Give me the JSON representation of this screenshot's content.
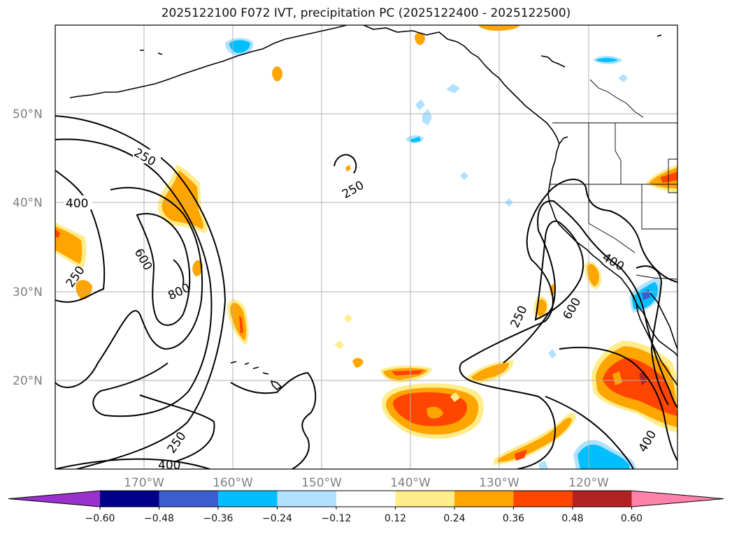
{
  "title": "2025122100 F072 IVT, precipitation PC (2025122400 - 2025122500)",
  "map": {
    "lon_range": [
      -180,
      -110
    ],
    "lat_range": [
      10,
      60
    ],
    "lat_labels": [
      "50°N",
      "40°N",
      "30°N",
      "20°N"
    ],
    "lon_labels": [
      "170°W",
      "160°W",
      "150°W",
      "140°W",
      "130°W",
      "120°W"
    ],
    "ivt_contour_labels": [
      "250",
      "400",
      "250",
      "600",
      "800",
      "250",
      "400",
      "250",
      "600",
      "400",
      "250",
      "400"
    ]
  },
  "colorbar": {
    "ticks": [
      "−0.60",
      "−0.48",
      "−0.36",
      "−0.24",
      "−0.12",
      "0.12",
      "0.24",
      "0.36",
      "0.48",
      "0.60"
    ],
    "colors": [
      "#9932cc",
      "#00008b",
      "#3a5fcd",
      "#00bfff",
      "#b0e2ff",
      "#ffffff",
      "#ffec8b",
      "#ffa500",
      "#ff4500",
      "#b22222",
      "#ff82ab"
    ],
    "under_color": "#9932cc",
    "over_color": "#ff82ab"
  },
  "colors": {
    "frame": "#000000",
    "grid": "#b0b0b0",
    "coast": "#000000",
    "contour": "#000000"
  }
}
